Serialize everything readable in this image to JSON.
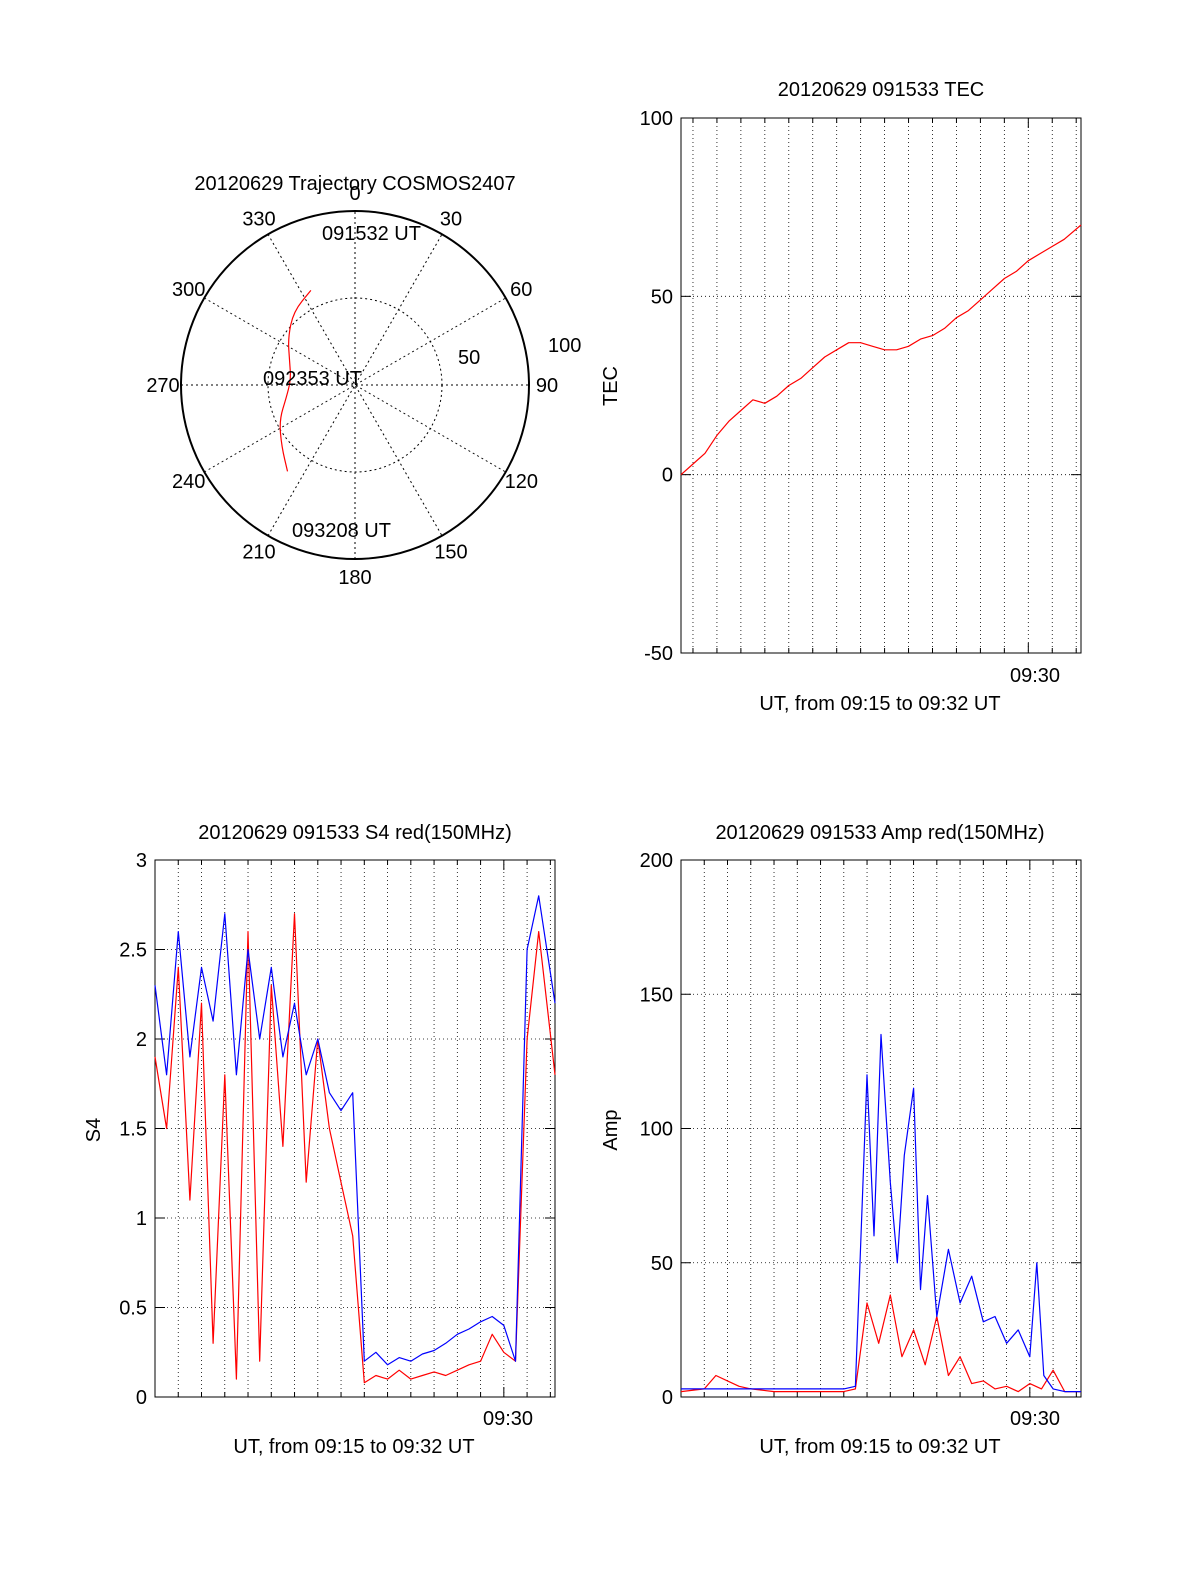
{
  "colors": {
    "red": "#ff0000",
    "blue": "#0000ff",
    "axis": "#000000"
  },
  "chart_data": [
    {
      "id": "trajectory",
      "type": "polar",
      "title": "20120629 Trajectory COSMOS2407",
      "azimuth_labels": [
        "0",
        "30",
        "60",
        "90",
        "120",
        "150",
        "180",
        "210",
        "240",
        "270",
        "300",
        "330"
      ],
      "radial_tick_labels": [
        "100",
        "50"
      ],
      "rlim": [
        0,
        100
      ],
      "annotations": [
        "091532 UT",
        "092353 UT",
        "093208 UT"
      ],
      "trajectory": [
        {
          "az": 335,
          "r": 60
        },
        {
          "az": 320,
          "r": 55
        },
        {
          "az": 305,
          "r": 47
        },
        {
          "az": 290,
          "r": 40
        },
        {
          "az": 275,
          "r": 37
        },
        {
          "az": 260,
          "r": 40
        },
        {
          "az": 245,
          "r": 48
        },
        {
          "az": 230,
          "r": 55
        },
        {
          "az": 218,
          "r": 63
        }
      ]
    },
    {
      "id": "tec",
      "type": "line",
      "title": "20120629 091533 TEC",
      "ylabel": "TEC",
      "xlabel": "UT, from 09:15 to 09:32 UT",
      "x_tick_label": "09:30",
      "ylim": [
        -50,
        100
      ],
      "yticks": [
        "100",
        "50",
        "0",
        "-50"
      ],
      "xlim_minutes": [
        15.5,
        32.2
      ],
      "grid": true,
      "series": [
        {
          "color": "red",
          "x": [
            15.5,
            16.0,
            16.5,
            17.0,
            17.5,
            18.0,
            18.5,
            19.0,
            19.5,
            20.0,
            20.5,
            21.0,
            21.5,
            22.0,
            22.5,
            23.0,
            23.5,
            24.0,
            24.5,
            25.0,
            25.5,
            26.0,
            26.5,
            27.0,
            27.5,
            28.0,
            28.5,
            29.0,
            29.5,
            30.0,
            30.5,
            31.0,
            31.5,
            32.2
          ],
          "y": [
            0,
            3,
            6,
            11,
            15,
            18,
            21,
            20,
            22,
            25,
            27,
            30,
            33,
            35,
            37,
            37,
            36,
            35,
            35,
            36,
            38,
            39,
            41,
            44,
            46,
            49,
            52,
            55,
            57,
            60,
            62,
            64,
            66,
            70
          ]
        }
      ]
    },
    {
      "id": "s4",
      "type": "line",
      "title": "20120629 091533 S4 red(150MHz)",
      "ylabel": "S4",
      "xlabel": "UT, from 09:15 to 09:32 UT",
      "x_tick_label": "09:30",
      "ylim": [
        0,
        3
      ],
      "yticks": [
        "3",
        "2.5",
        "2",
        "1.5",
        "1",
        "0.5",
        "0"
      ],
      "xlim_minutes": [
        15.0,
        32.2
      ],
      "grid": true,
      "series": [
        {
          "color": "red",
          "x": [
            15.0,
            15.5,
            16.0,
            16.5,
            17.0,
            17.5,
            18.0,
            18.5,
            19.0,
            19.5,
            20.0,
            20.5,
            21.0,
            21.5,
            22.0,
            22.5,
            23.0,
            23.5,
            24.0,
            24.5,
            25.0,
            25.5,
            26.0,
            26.5,
            27.0,
            27.5,
            28.0,
            28.5,
            29.0,
            29.5,
            30.0,
            30.5,
            31.0,
            31.5,
            32.2
          ],
          "y": [
            1.9,
            1.5,
            2.4,
            1.1,
            2.2,
            0.3,
            1.8,
            0.1,
            2.6,
            0.2,
            2.3,
            1.4,
            2.7,
            1.2,
            2.0,
            1.5,
            1.2,
            0.9,
            0.08,
            0.12,
            0.1,
            0.15,
            0.1,
            0.12,
            0.14,
            0.12,
            0.15,
            0.18,
            0.2,
            0.35,
            0.25,
            0.2,
            2.0,
            2.6,
            1.8
          ]
        },
        {
          "color": "blue",
          "x": [
            15.0,
            15.5,
            16.0,
            16.5,
            17.0,
            17.5,
            18.0,
            18.5,
            19.0,
            19.5,
            20.0,
            20.5,
            21.0,
            21.5,
            22.0,
            22.5,
            23.0,
            23.5,
            24.0,
            24.5,
            25.0,
            25.5,
            26.0,
            26.5,
            27.0,
            27.5,
            28.0,
            28.5,
            29.0,
            29.5,
            30.0,
            30.5,
            31.0,
            31.5,
            32.2
          ],
          "y": [
            2.3,
            1.8,
            2.6,
            1.9,
            2.4,
            2.1,
            2.7,
            1.8,
            2.5,
            2.0,
            2.4,
            1.9,
            2.2,
            1.8,
            2.0,
            1.7,
            1.6,
            1.7,
            0.2,
            0.25,
            0.18,
            0.22,
            0.2,
            0.24,
            0.26,
            0.3,
            0.35,
            0.38,
            0.42,
            0.45,
            0.4,
            0.2,
            2.5,
            2.8,
            2.2
          ]
        }
      ]
    },
    {
      "id": "amp",
      "type": "line",
      "title": "20120629 091533 Amp red(150MHz)",
      "ylabel": "Amp",
      "xlabel": "UT, from 09:15 to 09:32 UT",
      "x_tick_label": "09:30",
      "ylim": [
        0,
        200
      ],
      "yticks": [
        "200",
        "150",
        "100",
        "50",
        "0"
      ],
      "xlim_minutes": [
        15.0,
        32.2
      ],
      "grid": true,
      "series": [
        {
          "color": "red",
          "x": [
            15.0,
            16.0,
            16.5,
            17.0,
            17.5,
            18.0,
            19.0,
            20.0,
            21.0,
            22.0,
            22.5,
            23.0,
            23.5,
            24.0,
            24.5,
            25.0,
            25.5,
            26.0,
            26.5,
            27.0,
            27.5,
            28.0,
            28.5,
            29.0,
            29.5,
            30.0,
            30.5,
            31.0,
            31.5,
            32.2
          ],
          "y": [
            2,
            3,
            8,
            6,
            4,
            3,
            2,
            2,
            2,
            2,
            3,
            35,
            20,
            38,
            15,
            25,
            12,
            30,
            8,
            15,
            5,
            6,
            3,
            4,
            2,
            5,
            3,
            10,
            2,
            2
          ]
        },
        {
          "color": "blue",
          "x": [
            15.0,
            16.0,
            17.0,
            18.0,
            19.0,
            20.0,
            21.0,
            22.0,
            22.5,
            23.0,
            23.3,
            23.6,
            24.0,
            24.3,
            24.6,
            25.0,
            25.3,
            25.6,
            26.0,
            26.5,
            27.0,
            27.5,
            28.0,
            28.5,
            29.0,
            29.5,
            30.0,
            30.3,
            30.6,
            31.0,
            31.5,
            32.2
          ],
          "y": [
            3,
            3,
            3,
            3,
            3,
            3,
            3,
            3,
            4,
            120,
            60,
            135,
            80,
            50,
            90,
            115,
            40,
            75,
            30,
            55,
            35,
            45,
            28,
            30,
            20,
            25,
            15,
            50,
            8,
            3,
            2,
            2
          ]
        }
      ]
    }
  ]
}
